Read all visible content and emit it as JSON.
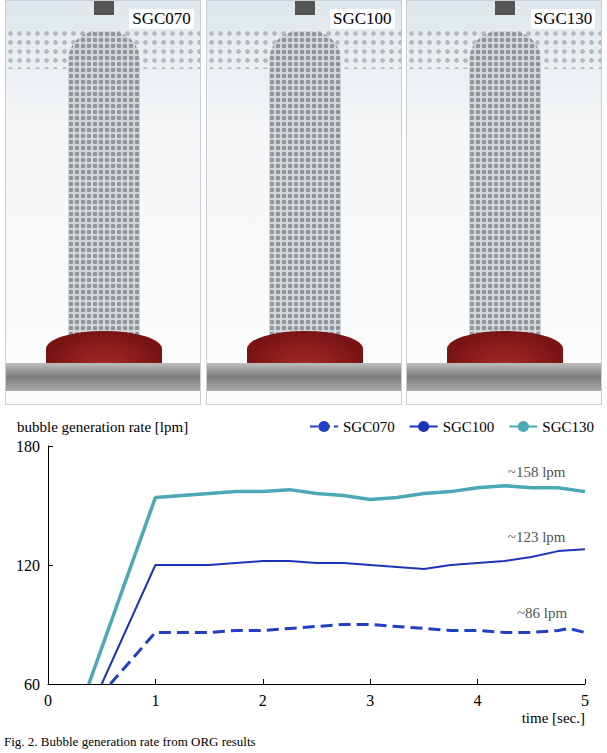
{
  "chart_data": {
    "type": "line",
    "title": "bubble generation rate [lpm]",
    "x_label": "time [sec.]",
    "xlim": [
      0,
      5
    ],
    "xticks": [
      0,
      1,
      2,
      3,
      4,
      5
    ],
    "ylim": [
      60,
      180
    ],
    "yticks": [
      60,
      120,
      180
    ],
    "grid": false,
    "legend": "top-right",
    "series": [
      {
        "name": "SGC070",
        "color": "#2140c4",
        "line_style": "dashed",
        "x": [
          0.58,
          1.0,
          1.25,
          1.5,
          1.75,
          2.0,
          2.25,
          2.5,
          2.75,
          3.0,
          3.25,
          3.5,
          3.75,
          4.0,
          4.25,
          4.5,
          4.75,
          4.85,
          5.0
        ],
        "values": [
          60,
          86,
          86,
          86,
          87,
          87,
          88,
          89,
          90,
          90,
          89,
          88,
          87,
          87,
          86,
          86,
          87,
          88,
          86
        ]
      },
      {
        "name": "SGC100",
        "color": "#1c35b8",
        "line_style": "solid",
        "x": [
          0.5,
          1.0,
          1.25,
          1.5,
          1.75,
          2.0,
          2.25,
          2.5,
          2.75,
          3.0,
          3.25,
          3.5,
          3.75,
          4.0,
          4.25,
          4.5,
          4.75,
          5.0
        ],
        "values": [
          60,
          120,
          120,
          120,
          121,
          122,
          122,
          121,
          121,
          120,
          119,
          118,
          120,
          121,
          122,
          124,
          127,
          128
        ]
      },
      {
        "name": "SGC130",
        "color": "#4aa9b5",
        "line_style": "solid",
        "x": [
          0.38,
          1.0,
          1.25,
          1.5,
          1.75,
          2.0,
          2.25,
          2.5,
          2.75,
          3.0,
          3.25,
          3.5,
          3.75,
          4.0,
          4.25,
          4.5,
          4.75,
          5.0
        ],
        "values": [
          60,
          154,
          155,
          156,
          157,
          157,
          158,
          156,
          155,
          153,
          154,
          156,
          157,
          159,
          160,
          159,
          159,
          157
        ]
      }
    ],
    "annotations": [
      {
        "text": "~158 lpm",
        "x": 4.55,
        "y": 167
      },
      {
        "text": "~123 lpm",
        "x": 4.55,
        "y": 134
      },
      {
        "text": "~86 lpm",
        "x": 4.6,
        "y": 96
      }
    ]
  },
  "panels": [
    "SGC070",
    "SGC100",
    "SGC130"
  ],
  "caption": "Fig. 2. Bubble generation rate from ORG results"
}
